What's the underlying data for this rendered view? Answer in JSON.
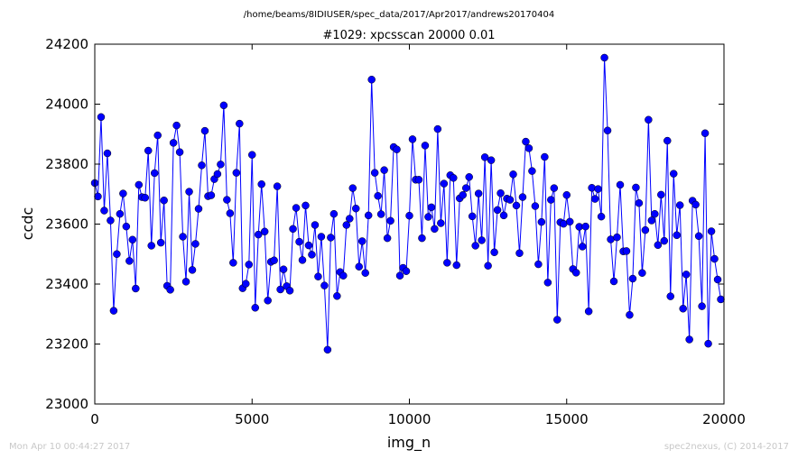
{
  "chart_data": {
    "type": "line",
    "suptitle": "/home/beams/8IDIUSER/spec_data/2017/Apr2017/andrews20170404",
    "title": "#1029: xpcsscan 20000 0.01",
    "xlabel": "img_n",
    "ylabel": "ccdc",
    "xlim": [
      0,
      20000
    ],
    "ylim": [
      23000,
      24200
    ],
    "xticks": [
      "0",
      "5000",
      "10000",
      "15000",
      "20000"
    ],
    "yticks": [
      "23000",
      "23200",
      "23400",
      "23600",
      "23800",
      "24000",
      "24200"
    ],
    "grid": false,
    "line_color": "#0000ff",
    "marker": "circle",
    "x_step": 100,
    "series": [
      {
        "values": [
          23737,
          23692,
          23957,
          23645,
          23836,
          23612,
          23311,
          23500,
          23634,
          23702,
          23592,
          23477,
          23548,
          23385,
          23731,
          23690,
          23688,
          23845,
          23528,
          23770,
          23896,
          23538,
          23679,
          23394,
          23381,
          23871,
          23929,
          23840,
          23558,
          23408,
          23708,
          23447,
          23534,
          23651,
          23796,
          23911,
          23693,
          23696,
          23750,
          23767,
          23799,
          23996,
          23681,
          23636,
          23471,
          23771,
          23935,
          23386,
          23401,
          23465,
          23831,
          23321,
          23565,
          23733,
          23575,
          23345,
          23474,
          23479,
          23726,
          23382,
          23449,
          23393,
          23378,
          23584,
          23654,
          23541,
          23480,
          23662,
          23529,
          23498,
          23597,
          23425,
          23558,
          23395,
          23181,
          23555,
          23634,
          23360,
          23440,
          23428,
          23597,
          23618,
          23720,
          23652,
          23458,
          23543,
          23437,
          23629,
          24082,
          23771,
          23694,
          23633,
          23780,
          23553,
          23611,
          23857,
          23849,
          23428,
          23454,
          23443,
          23628,
          23883,
          23748,
          23748,
          23553,
          23862,
          23624,
          23656,
          23584,
          23917,
          23603,
          23735,
          23471,
          23763,
          23754,
          23463,
          23686,
          23697,
          23720,
          23757,
          23626,
          23528,
          23702,
          23546,
          23823,
          23461,
          23813,
          23506,
          23647,
          23703,
          23629,
          23685,
          23681,
          23766,
          23662,
          23503,
          23690,
          23875,
          23853,
          23777,
          23660,
          23466,
          23607,
          23824,
          23405,
          23681,
          23720,
          23281,
          23606,
          23601,
          23697,
          23608,
          23450,
          23438,
          23591,
          23525,
          23592,
          23309,
          23721,
          23684,
          23717,
          23625,
          24155,
          23912,
          23549,
          23409,
          23556,
          23731,
          23509,
          23510,
          23297,
          23418,
          23722,
          23670,
          23437,
          23580,
          23948,
          23612,
          23634,
          23530,
          23698,
          23544,
          23878,
          23359,
          23768,
          23563,
          23663,
          23318,
          23432,
          23215,
          23678,
          23665,
          23560,
          23326,
          23903,
          23201,
          23576,
          23484,
          23415,
          23349
        ]
      }
    ]
  },
  "footer": {
    "timestamp": "Mon Apr 10 00:44:27 2017",
    "credit": "spec2nexus, (C) 2014-2017"
  }
}
